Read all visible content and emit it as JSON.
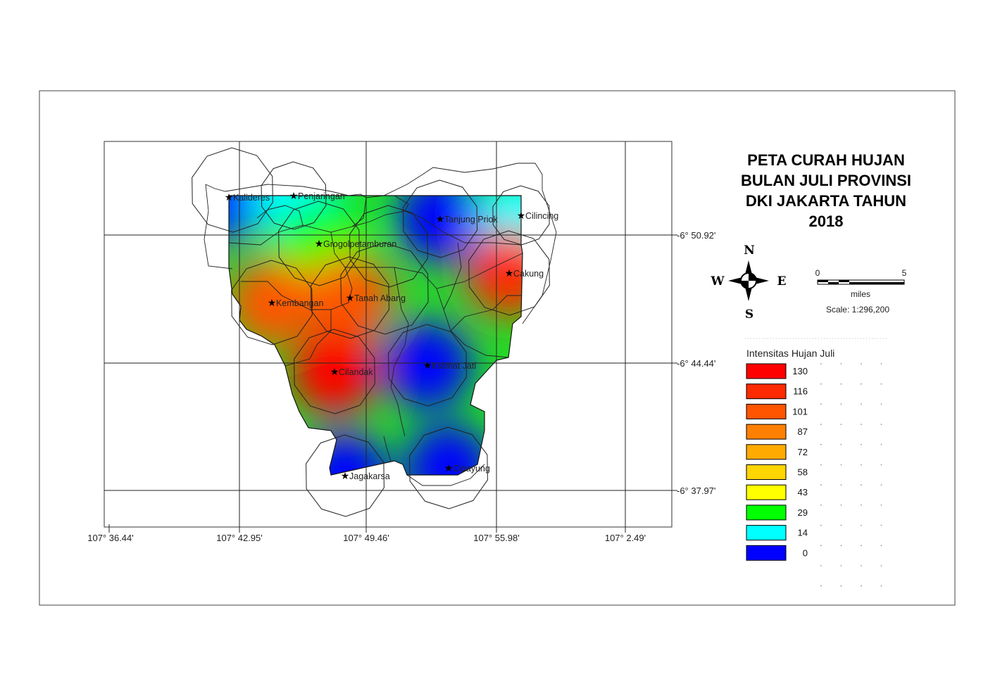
{
  "map": {
    "title_lines": [
      "PETA CURAH HUJAN",
      "BULAN JULI PROVINSI",
      "DKI JAKARTA TAHUN",
      "2018"
    ],
    "lon_ticks": [
      "107° 36.44'",
      "107° 42.95'",
      "107° 49.46'",
      "107° 55.98'",
      "107° 2.49'"
    ],
    "lat_ticks": [
      "-6° 50.92'",
      "-6° 44.44'",
      "-6° 37.97'"
    ],
    "stations": [
      {
        "name": "Kalideres",
        "intensity": 5
      },
      {
        "name": "Penjaringan",
        "intensity": 20
      },
      {
        "name": "Tanjung Priok",
        "intensity": 4
      },
      {
        "name": "Cilincing",
        "intensity": 18
      },
      {
        "name": "Grogolpetamburan",
        "intensity": 30
      },
      {
        "name": "Cakung",
        "intensity": 118
      },
      {
        "name": "Kembangan",
        "intensity": 95
      },
      {
        "name": "Tanah Abang",
        "intensity": 108
      },
      {
        "name": "Cilandak",
        "intensity": 128
      },
      {
        "name": "Kramat Jati",
        "intensity": 3
      },
      {
        "name": "Jagakarsa",
        "intensity": 6
      },
      {
        "name": "Cipayung",
        "intensity": 4
      }
    ]
  },
  "compass": {
    "n": "N",
    "s": "S",
    "e": "E",
    "w": "W"
  },
  "scale_bar": {
    "min": "0",
    "max": "5",
    "unit": "miles",
    "scale_text": "Scale: 1:296,200"
  },
  "legend": {
    "title": "Intensitas Hujan Juli",
    "items": [
      {
        "value": "130",
        "color": "#ff0000"
      },
      {
        "value": "116",
        "color": "#ff2a00"
      },
      {
        "value": "101",
        "color": "#ff5500"
      },
      {
        "value": "87",
        "color": "#ff8000"
      },
      {
        "value": "72",
        "color": "#ffaa00"
      },
      {
        "value": "58",
        "color": "#ffd500"
      },
      {
        "value": "43",
        "color": "#ffff00"
      },
      {
        "value": "29",
        "color": "#00ff00"
      },
      {
        "value": "14",
        "color": "#00ffff"
      },
      {
        "value": "0",
        "color": "#0000ff"
      }
    ]
  }
}
